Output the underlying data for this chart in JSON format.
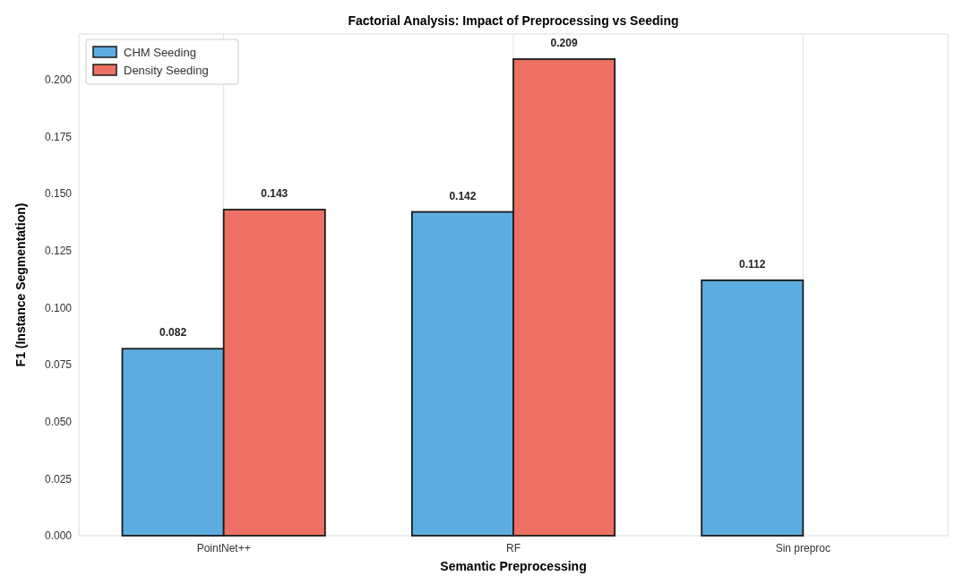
{
  "chart_data": {
    "type": "bar",
    "title": "Factorial Analysis: Impact of Preprocessing vs Seeding",
    "xlabel": "Semantic Preprocessing",
    "ylabel": "F1 (Instance Segmentation)",
    "categories": [
      "PointNet++",
      "RF",
      "Sin preproc"
    ],
    "series": [
      {
        "name": "CHM Seeding",
        "color": "#5dade2",
        "values": [
          0.082,
          0.142,
          0.112
        ],
        "value_labels": [
          "0.082",
          "0.142",
          "0.112"
        ]
      },
      {
        "name": "Density Seeding",
        "color": "#ec7063",
        "values": [
          0.143,
          0.209,
          null
        ],
        "value_labels": [
          "0.143",
          "0.209",
          null
        ]
      }
    ],
    "ylim": [
      0,
      0.22
    ],
    "yticks": [
      {
        "value": 0,
        "label": "0.000"
      },
      {
        "value": 0.025,
        "label": "0.025"
      },
      {
        "value": 0.05,
        "label": "0.050"
      },
      {
        "value": 0.075,
        "label": "0.075"
      },
      {
        "value": 0.1,
        "label": "0.100"
      },
      {
        "value": 0.125,
        "label": "0.125"
      },
      {
        "value": 0.15,
        "label": "0.150"
      },
      {
        "value": 0.175,
        "label": "0.175"
      },
      {
        "value": 0.2,
        "label": "0.200"
      }
    ],
    "grid": "x",
    "legend": "top left"
  }
}
